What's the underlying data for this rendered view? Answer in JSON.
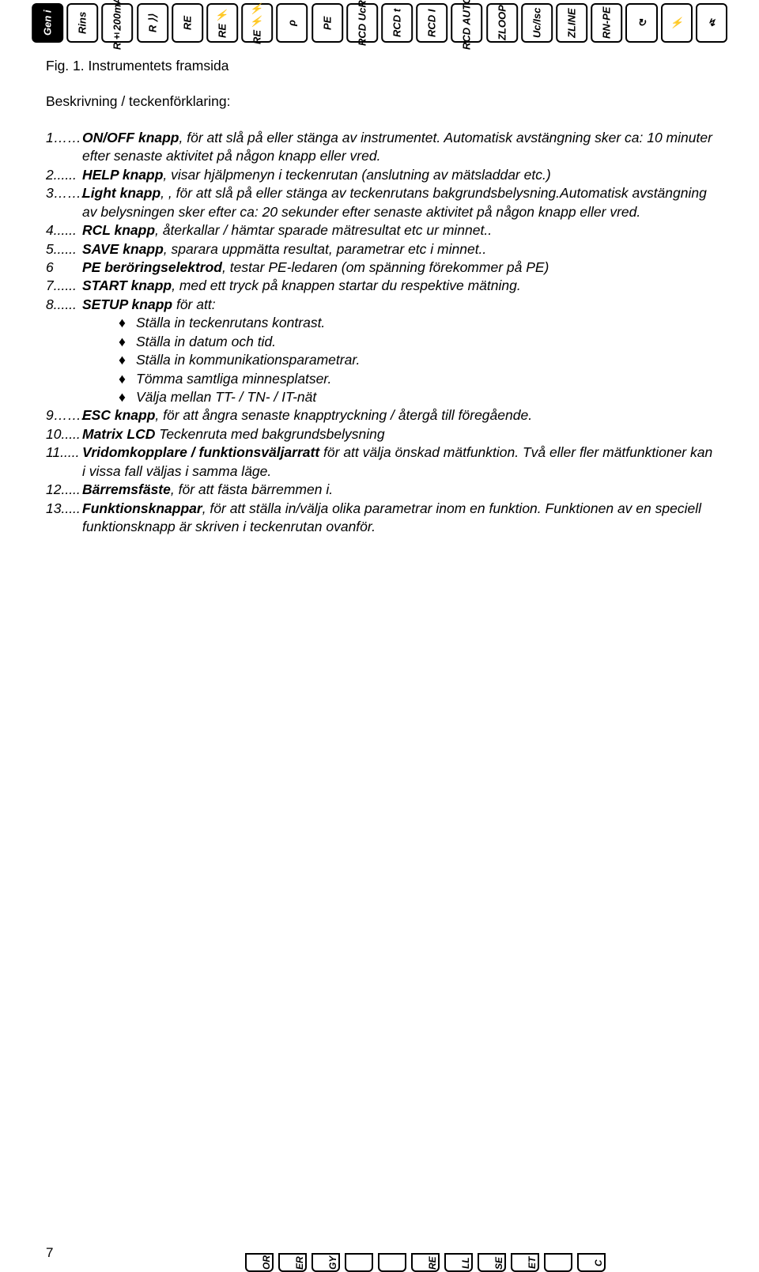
{
  "top_icons": [
    {
      "label": "Gen i",
      "dark": true
    },
    {
      "label": "Rins"
    },
    {
      "label": "R±200mA"
    },
    {
      "label": "R ⟩⟩"
    },
    {
      "label": "RE"
    },
    {
      "label": "RE ⚡"
    },
    {
      "label": "RE ⚡⚡"
    },
    {
      "label": "ρ"
    },
    {
      "label": "PE"
    },
    {
      "label": "RCD UcR"
    },
    {
      "label": "RCD t"
    },
    {
      "label": "RCD I"
    },
    {
      "label": "RCD AUTO"
    },
    {
      "label": "ZLOOP"
    },
    {
      "label": "Uc/Isc"
    },
    {
      "label": "ZLINE"
    },
    {
      "label": "RN-PE"
    },
    {
      "label": "↻",
      "horiz": true
    },
    {
      "label": "⚡",
      "horiz": true
    },
    {
      "label": "↯",
      "horiz": true
    }
  ],
  "fig_caption": "Fig. 1. Instrumentets framsida",
  "subheading": "Beskrivning / teckenförklaring:",
  "items": [
    {
      "num": "1……",
      "parts": [
        {
          "t": "ON/OFF knapp",
          "s": "bolditalic"
        },
        {
          "t": ", för att slå på eller stänga av instrumentet. Automatisk avstängning sker ca: 10 minuter efter senaste aktivitet på någon knapp eller vred.",
          "s": "italic"
        }
      ]
    },
    {
      "num": "2......",
      "parts": [
        {
          "t": "HELP knapp",
          "s": "bolditalic"
        },
        {
          "t": ", visar hjälpmenyn i teckenrutan (anslutning av mätsladdar etc.)",
          "s": "italic"
        }
      ]
    },
    {
      "num": "3……..",
      "parts": [
        {
          "t": "Light knapp",
          "s": "bolditalic"
        },
        {
          "t": ", , för att slå på eller stänga av teckenrutans bakgrundsbelysning.Automatisk avstängning av belysningen sker efter ca: 20 sekunder efter senaste aktivitet på någon knapp eller vred.",
          "s": "italic"
        }
      ]
    },
    {
      "num": "4......",
      "parts": [
        {
          "t": "RCL knapp",
          "s": "bolditalic"
        },
        {
          "t": ", återkallar / hämtar sparade mätresultat etc ur minnet..",
          "s": "italic"
        }
      ]
    },
    {
      "num": "5......",
      "parts": [
        {
          "t": "SAVE knapp",
          "s": "bolditalic"
        },
        {
          "t": ", sparara uppmätta resultat, parametrar etc i minnet..",
          "s": "italic"
        }
      ]
    },
    {
      "num": "6",
      "parts": [
        {
          "t": "PE beröringselektrod",
          "s": "bolditalic"
        },
        {
          "t": ", testar PE-ledaren (om spänning förekommer på PE)",
          "s": "italic"
        }
      ]
    },
    {
      "num": "7......",
      "parts": [
        {
          "t": "START knapp",
          "s": "bolditalic"
        },
        {
          "t": ", med ett tryck på knappen startar du respektive mätning.",
          "s": "italic"
        }
      ]
    },
    {
      "num": "8......",
      "parts": [
        {
          "t": "SETUP knapp",
          "s": "bolditalic"
        },
        {
          "t": " för att:",
          "s": "italic"
        }
      ],
      "bullets": [
        "Ställa in teckenrutans kontrast.",
        "Ställa in datum och tid.",
        "Ställa in kommunikationsparametrar.",
        "Tömma samtliga minnesplatser.",
        "Välja mellan TT- / TN- / IT-nät"
      ]
    },
    {
      "num": "9……..",
      "parts": [
        {
          "t": "ESC knapp",
          "s": "bolditalic"
        },
        {
          "t": ", för att ångra senaste knapptryckning / återgå till föregående.",
          "s": "italic"
        }
      ]
    },
    {
      "num": "10.....",
      "parts": [
        {
          "t": "Matrix LCD",
          "s": "bolditalic"
        },
        {
          "t": " Teckenruta med bakgrundsbelysning",
          "s": "italic"
        }
      ]
    },
    {
      "num": "11.....",
      "parts": [
        {
          "t": "Vridomkopplare / funktionsväljarratt",
          "s": "bolditalic"
        },
        {
          "t": " för att välja önskad mätfunktion. Två eller fler mätfunktioner kan i vissa fall väljas i samma läge.",
          "s": "italic"
        }
      ]
    },
    {
      "num": "12.....",
      "parts": [
        {
          "t": "Bärremsfäste",
          "s": "bolditalic"
        },
        {
          "t": ", för att fästa bärremmen i.",
          "s": "italic"
        }
      ]
    },
    {
      "num": "13.....",
      "parts": [
        {
          "t": "Funktionsknappar",
          "s": "bolditalic"
        },
        {
          "t": ", för att ställa in/välja  olika parametrar inom en funktion. Funktionen av en speciell funktionsknapp är skriven i teckenrutan ovanför.",
          "s": "italic"
        }
      ]
    }
  ],
  "bullet_symbol": "♦",
  "page_number": "7",
  "bottom_icons": [
    "OR",
    "ER",
    "GY",
    "",
    "",
    "RE",
    "LL",
    "SE",
    "ET",
    "",
    "C"
  ]
}
